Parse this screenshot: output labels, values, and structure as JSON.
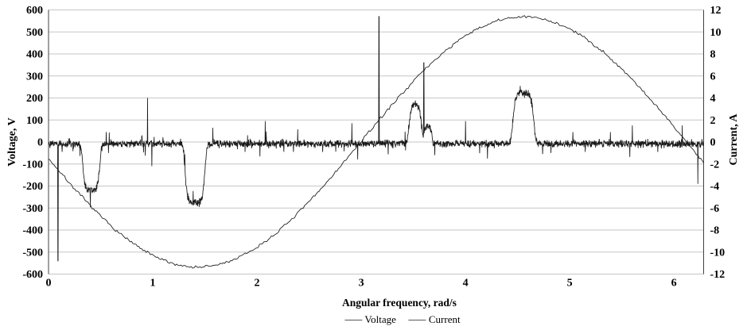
{
  "chart_data": {
    "type": "line",
    "xlabel": "Angular frequency, rad/s",
    "ylabel_left": "Voltage, V",
    "ylabel_right": "Current, A",
    "x_range": [
      0,
      6.285
    ],
    "x_ticks": [
      0,
      1,
      2,
      3,
      4,
      5,
      6
    ],
    "y_left_range": [
      -600,
      600
    ],
    "y_left_ticks": [
      600,
      500,
      400,
      300,
      200,
      100,
      0,
      -100,
      -200,
      -300,
      -400,
      -500,
      -600
    ],
    "y_right_range": [
      -12,
      12
    ],
    "y_right_ticks": [
      12,
      10,
      8,
      6,
      4,
      2,
      0,
      -2,
      -4,
      -6,
      -8,
      -10,
      -12
    ],
    "grid": "horizontal",
    "legend": [
      "Voltage",
      "Current"
    ],
    "series": [
      {
        "name": "Voltage",
        "axis": "left",
        "model": {
          "kind": "noisy_sine",
          "amplitude": 568,
          "omega": 1.005,
          "phase": 2.995,
          "offset": 0,
          "noise_v": 3.2
        }
      },
      {
        "name": "Current",
        "axis": "right",
        "model": {
          "kind": "baseline_with_events",
          "baseline": -0.15,
          "noise_a": 0.17,
          "bumps": [
            {
              "center": 0.41,
              "half_width": 0.085,
              "peak": -4.25,
              "power": 6
            },
            {
              "center": 1.405,
              "half_width": 0.1,
              "peak": -5.35,
              "power": 6
            },
            {
              "center": 3.52,
              "half_width": 0.065,
              "peak": 3.55,
              "power": 4
            },
            {
              "center": 3.64,
              "half_width": 0.04,
              "peak": 1.5,
              "power": 6
            },
            {
              "center": 4.555,
              "half_width": 0.105,
              "peak": 4.55,
              "power": 6
            }
          ],
          "spikes": [
            {
              "x": 0.09,
              "peak": -10.8
            },
            {
              "x": 0.13,
              "peak": -0.9
            },
            {
              "x": 0.95,
              "peak": 4.0
            },
            {
              "x": 0.99,
              "peak": -2.2
            },
            {
              "x": 1.575,
              "peak": 1.3
            },
            {
              "x": 2.08,
              "peak": 1.9
            },
            {
              "x": 2.35,
              "peak": -0.9
            },
            {
              "x": 2.91,
              "peak": 1.7
            },
            {
              "x": 3.17,
              "peak": 11.4
            },
            {
              "x": 3.6,
              "peak": 7.2
            },
            {
              "x": 3.705,
              "peak": -1.2
            },
            {
              "x": 4.0,
              "peak": 1.9
            },
            {
              "x": 4.21,
              "peak": -1.5
            },
            {
              "x": 4.525,
              "peak": 5.1
            },
            {
              "x": 4.74,
              "peak": -1.1
            },
            {
              "x": 4.82,
              "peak": -1.0
            },
            {
              "x": 5.03,
              "peak": 0.9
            },
            {
              "x": 5.15,
              "peak": -0.9
            },
            {
              "x": 5.39,
              "peak": 0.9
            },
            {
              "x": 5.6,
              "peak": 1.5
            },
            {
              "x": 6.08,
              "peak": 1.5
            },
            {
              "x": 6.23,
              "peak": -3.8
            }
          ]
        }
      }
    ]
  },
  "colors": {
    "line": "#1a1a1a",
    "grid": "#c6c6c6",
    "axis": "#404040",
    "background": "#ffffff",
    "text": "#000000",
    "legend_line": "#595959"
  }
}
